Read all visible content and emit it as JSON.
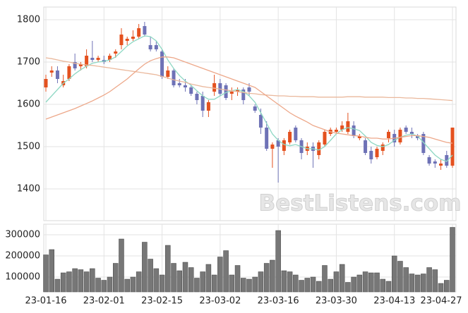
{
  "chart_data": [
    {
      "type": "candlestick",
      "watermark": "BestListens.com",
      "categories": [
        "23-01-16",
        null,
        null,
        null,
        null,
        null,
        null,
        null,
        null,
        null,
        "23-02-01",
        null,
        null,
        null,
        null,
        null,
        null,
        null,
        null,
        null,
        "23-02-15",
        null,
        null,
        null,
        null,
        null,
        null,
        null,
        null,
        null,
        "23-03-02",
        null,
        null,
        null,
        null,
        null,
        null,
        null,
        null,
        null,
        "23-03-16",
        null,
        null,
        null,
        null,
        null,
        null,
        null,
        null,
        null,
        "23-03-30",
        null,
        null,
        null,
        null,
        null,
        null,
        null,
        null,
        null,
        "23-04-13",
        null,
        null,
        null,
        null,
        null,
        null,
        null,
        null,
        null,
        "23-04-27"
      ],
      "open": [
        1640,
        1675,
        1680,
        1645,
        1660,
        1700,
        1690,
        1690,
        1710,
        1705,
        1705,
        1705,
        1720,
        1740,
        1750,
        1755,
        1760,
        1785,
        1740,
        1740,
        1725,
        1665,
        1680,
        1650,
        1645,
        1640,
        1625,
        1620,
        1585,
        1630,
        1650,
        1645,
        1625,
        1630,
        1635,
        1640,
        1595,
        1575,
        1545,
        1495,
        1515,
        1490,
        1510,
        1545,
        1515,
        1490,
        1500,
        1480,
        1505,
        1530,
        1535,
        1540,
        1535,
        1550,
        1520,
        1515,
        1490,
        1475,
        1490,
        1520,
        1530,
        1510,
        1545,
        1535,
        1525,
        1530,
        1475,
        1465,
        1455,
        1480,
        1455
      ],
      "high": [
        1670,
        1690,
        1690,
        1670,
        1695,
        1720,
        1700,
        1730,
        1750,
        1715,
        1715,
        1720,
        1730,
        1780,
        1760,
        1775,
        1790,
        1795,
        1760,
        1750,
        1730,
        1690,
        1685,
        1660,
        1660,
        1645,
        1630,
        1630,
        1610,
        1670,
        1660,
        1650,
        1640,
        1640,
        1640,
        1650,
        1600,
        1590,
        1560,
        1510,
        1520,
        1520,
        1540,
        1550,
        1520,
        1510,
        1510,
        1515,
        1540,
        1545,
        1545,
        1560,
        1580,
        1560,
        1530,
        1520,
        1500,
        1500,
        1510,
        1540,
        1540,
        1545,
        1550,
        1545,
        1530,
        1535,
        1480,
        1470,
        1470,
        1490,
        1545
      ],
      "low": [
        1630,
        1665,
        1650,
        1640,
        1655,
        1680,
        1680,
        1685,
        1700,
        1700,
        1695,
        1700,
        1710,
        1730,
        1740,
        1750,
        1755,
        1760,
        1725,
        1725,
        1660,
        1660,
        1640,
        1640,
        1630,
        1620,
        1600,
        1570,
        1570,
        1620,
        1620,
        1610,
        1610,
        1620,
        1600,
        1620,
        1580,
        1530,
        1490,
        1450,
        1415,
        1480,
        1505,
        1510,
        1470,
        1480,
        1450,
        1470,
        1500,
        1525,
        1530,
        1535,
        1530,
        1520,
        1515,
        1480,
        1460,
        1470,
        1480,
        1510,
        1500,
        1505,
        1530,
        1520,
        1515,
        1480,
        1455,
        1450,
        1445,
        1450,
        1450
      ],
      "close": [
        1660,
        1680,
        1660,
        1655,
        1690,
        1685,
        1695,
        1715,
        1705,
        1710,
        1700,
        1715,
        1725,
        1765,
        1755,
        1760,
        1780,
        1765,
        1730,
        1730,
        1665,
        1680,
        1645,
        1645,
        1640,
        1625,
        1610,
        1585,
        1605,
        1650,
        1625,
        1615,
        1630,
        1635,
        1610,
        1630,
        1585,
        1545,
        1495,
        1505,
        1500,
        1515,
        1535,
        1515,
        1485,
        1500,
        1490,
        1510,
        1535,
        1540,
        1540,
        1550,
        1560,
        1525,
        1525,
        1485,
        1470,
        1495,
        1505,
        1535,
        1510,
        1540,
        1535,
        1530,
        1520,
        1485,
        1460,
        1460,
        1460,
        1455,
        1545
      ],
      "up_color": "#e4511f",
      "down_color": "#6e72b6",
      "series": [
        {
          "color": "#8fd8c4",
          "values": [
            1605,
            1620,
            1635,
            1650,
            1660,
            1672,
            1682,
            1690,
            1697,
            1700,
            1702,
            1705,
            1712,
            1725,
            1738,
            1748,
            1755,
            1762,
            1760,
            1750,
            1730,
            1705,
            1685,
            1668,
            1655,
            1645,
            1632,
            1620,
            1612,
            1612,
            1620,
            1628,
            1632,
            1635,
            1630,
            1620,
            1605,
            1580,
            1555,
            1530,
            1515,
            1505,
            1502,
            1505,
            1500,
            1495,
            1495,
            1492,
            1500,
            1515,
            1530,
            1540,
            1545,
            1542,
            1538,
            1525,
            1510,
            1503,
            1500,
            1505,
            1515,
            1522,
            1527,
            1530,
            1525,
            1510,
            1495,
            1480,
            1470,
            1465,
            1480
          ]
        },
        {
          "color": "#eab89c",
          "values": [
            1710,
            1708,
            1705,
            1702,
            1700,
            1697,
            1695,
            1693,
            1692,
            1690,
            1688,
            1686,
            1684,
            1682,
            1680,
            1678,
            1676,
            1674,
            1672,
            1670,
            1666,
            1662,
            1658,
            1655,
            1652,
            1648,
            1645,
            1642,
            1640,
            1638,
            1636,
            1634,
            1632,
            1630,
            1628,
            1626,
            1625,
            1623,
            1622,
            1621,
            1620,
            1620,
            1619,
            1619,
            1618,
            1618,
            1618,
            1617,
            1617,
            1617,
            1617,
            1617,
            1618,
            1618,
            1618,
            1617,
            1617,
            1617,
            1617,
            1616,
            1616,
            1616,
            1615,
            1615,
            1614,
            1614,
            1613,
            1612,
            1611,
            1610,
            1609
          ]
        },
        {
          "color": "#eda88a",
          "values": [
            1565,
            1570,
            1575,
            1580,
            1585,
            1590,
            1596,
            1602,
            1608,
            1615,
            1622,
            1630,
            1640,
            1650,
            1660,
            1672,
            1684,
            1695,
            1703,
            1708,
            1712,
            1712,
            1710,
            1705,
            1700,
            1695,
            1690,
            1685,
            1680,
            1675,
            1670,
            1665,
            1660,
            1655,
            1650,
            1645,
            1640,
            1630,
            1620,
            1610,
            1600,
            1590,
            1580,
            1572,
            1565,
            1558,
            1550,
            1545,
            1540,
            1535,
            1532,
            1530,
            1528,
            1526,
            1525,
            1522,
            1520,
            1520,
            1518,
            1518,
            1520,
            1522,
            1524,
            1526,
            1526,
            1524,
            1522,
            1518,
            1514,
            1510,
            1508
          ]
        }
      ],
      "ylim": [
        1325,
        1830
      ],
      "yticks": [
        1400,
        1500,
        1600,
        1700,
        1800
      ],
      "grid": true
    },
    {
      "type": "bar",
      "color": "#777777",
      "values": [
        205000,
        230000,
        90000,
        120000,
        125000,
        140000,
        135000,
        125000,
        140000,
        95000,
        85000,
        100000,
        165000,
        280000,
        90000,
        100000,
        125000,
        265000,
        185000,
        140000,
        110000,
        250000,
        165000,
        130000,
        170000,
        145000,
        95000,
        125000,
        160000,
        110000,
        195000,
        225000,
        110000,
        155000,
        95000,
        90000,
        100000,
        125000,
        165000,
        180000,
        320000,
        130000,
        125000,
        110000,
        85000,
        95000,
        100000,
        80000,
        155000,
        90000,
        125000,
        160000,
        75000,
        100000,
        110000,
        125000,
        120000,
        120000,
        90000,
        80000,
        200000,
        175000,
        145000,
        115000,
        110000,
        115000,
        145000,
        135000,
        70000,
        85000,
        335000
      ],
      "ylim": [
        30000,
        350000
      ],
      "yticks": [
        100000,
        200000,
        300000
      ],
      "grid": true
    }
  ]
}
